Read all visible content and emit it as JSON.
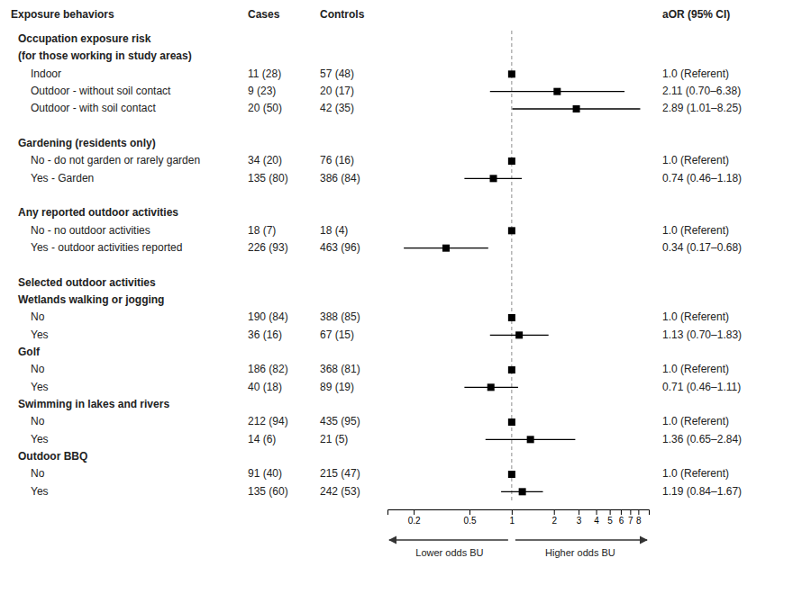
{
  "chart_data": {
    "type": "forest",
    "log": "x",
    "xlim": [
      0.13,
      9.5
    ],
    "xticks": [
      0.2,
      0.5,
      1,
      2,
      3,
      4,
      5,
      6,
      7,
      8
    ],
    "reference_line": 1.0,
    "color": "#000000",
    "data_labels": true,
    "column_headers": [
      "Exposure behaviors",
      "Cases",
      "Controls",
      "aOR (95% CI)"
    ],
    "annotations": [
      "Lower odds BU",
      "Higher odds BU"
    ],
    "categories": [
      "Occupation exposure risk",
      "(for those working in study areas)",
      "Indoor",
      "Outdoor - without soil contact",
      "Outdoor - with soil contact",
      null,
      "Gardening (residents only)",
      "No - do not garden or rarely garden",
      "Yes - Garden",
      null,
      "Any reported outdoor activities",
      "No - no outdoor activities",
      "Yes - outdoor activities reported",
      null,
      "Selected outdoor activities",
      "Wetlands walking or jogging",
      "No",
      "Yes",
      "Golf",
      "No",
      "Yes",
      "Swimming in lakes and rivers",
      "No",
      "Yes",
      "Outdoor BBQ",
      "No",
      "Yes"
    ],
    "values": [
      null,
      null,
      1.0,
      2.11,
      2.89,
      null,
      null,
      1.0,
      0.74,
      null,
      null,
      1.0,
      0.34,
      null,
      null,
      null,
      1.0,
      1.13,
      null,
      1.0,
      0.71,
      null,
      1.0,
      1.36,
      null,
      1.0,
      1.19
    ],
    "ci_lo": [
      null,
      null,
      1.0,
      0.7,
      1.01,
      null,
      null,
      1.0,
      0.46,
      null,
      null,
      1.0,
      0.17,
      null,
      null,
      null,
      1.0,
      0.7,
      null,
      1.0,
      0.46,
      null,
      1.0,
      0.65,
      null,
      1.0,
      0.84
    ],
    "ci_hi": [
      null,
      null,
      1.0,
      6.38,
      8.25,
      null,
      null,
      1.0,
      1.18,
      null,
      null,
      1.0,
      0.68,
      null,
      null,
      null,
      1.0,
      1.83,
      null,
      1.0,
      1.11,
      null,
      1.0,
      2.84,
      null,
      1.0,
      1.67
    ],
    "value_labels": [
      null,
      null,
      "1.0 (Referent)",
      "2.11 (0.70–6.38)",
      "2.89 (1.01–8.25)",
      null,
      null,
      "1.0 (Referent)",
      "0.74 (0.46–1.18)",
      null,
      null,
      "1.0 (Referent)",
      "0.34 (0.17–0.68)",
      null,
      null,
      null,
      "1.0 (Referent)",
      "1.13 (0.70–1.83)",
      null,
      "1.0 (Referent)",
      "0.71 (0.46–1.11)",
      null,
      "1.0 (Referent)",
      "1.36 (0.65–2.84)",
      null,
      "1.0 (Referent)",
      "1.19 (0.84–1.67)"
    ],
    "cases": [
      null,
      null,
      "11 (28)",
      "9 (23)",
      "20 (50)",
      null,
      null,
      "34 (20)",
      "135 (80)",
      null,
      null,
      "18 (7)",
      "226 (93)",
      null,
      null,
      null,
      "190 (84)",
      "36 (16)",
      null,
      "186 (82)",
      "40 (18)",
      null,
      "212 (94)",
      "14 (6)",
      null,
      "91 (40)",
      "135 (60)"
    ],
    "controls": [
      null,
      null,
      "57 (48)",
      "20 (17)",
      "42 (35)",
      null,
      null,
      "76 (16)",
      "386 (84)",
      null,
      null,
      "18 (4)",
      "463 (96)",
      null,
      null,
      null,
      "388 (85)",
      "67 (15)",
      null,
      "368 (81)",
      "89 (19)",
      null,
      "435 (95)",
      "21 (5)",
      null,
      "215 (47)",
      "242 (53)"
    ]
  }
}
